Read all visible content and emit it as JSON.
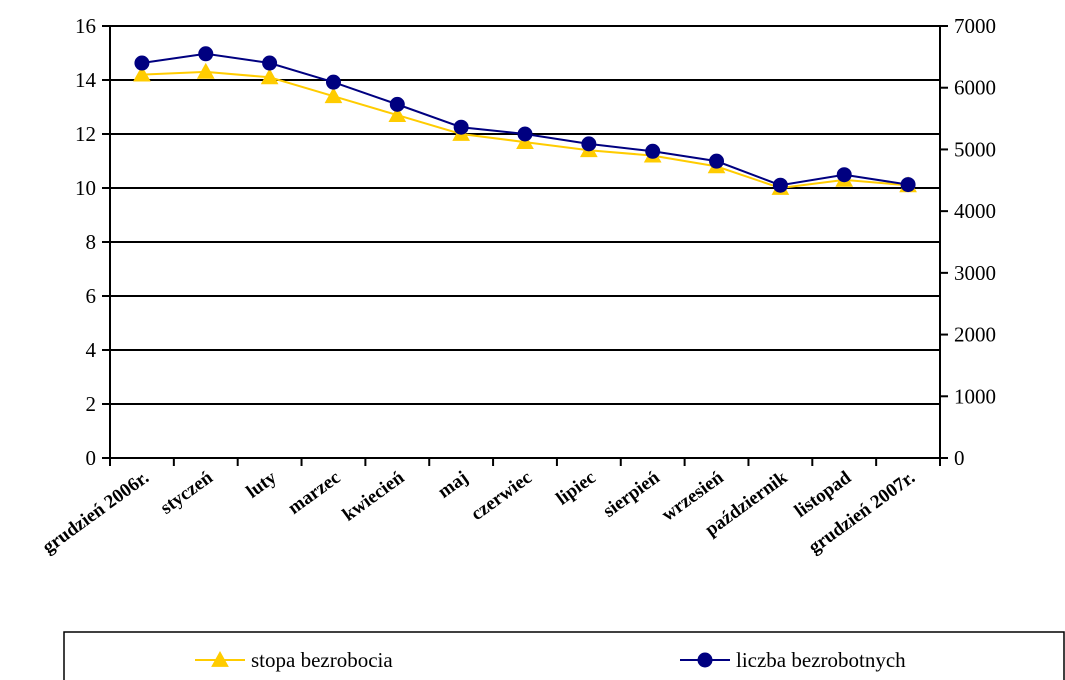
{
  "chart_data": {
    "type": "line",
    "categories": [
      "grudzień 2006r.",
      "styczeń",
      "luty",
      "marzec",
      "kwiecień",
      "maj",
      "czerwiec",
      "lipiec",
      "sierpień",
      "wrzesień",
      "październik",
      "listopad",
      "grudzień 2007r."
    ],
    "series": [
      {
        "name": "stopa bezrobocia",
        "axis": "left",
        "color": "#FFCC00",
        "marker": "triangle",
        "values": [
          14.2,
          14.3,
          14.1,
          13.4,
          12.7,
          12.0,
          11.7,
          11.4,
          11.2,
          10.8,
          10.0,
          10.3,
          10.1
        ]
      },
      {
        "name": "liczba bezrobotnych",
        "axis": "right",
        "color": "#000080",
        "marker": "circle",
        "values": [
          6400,
          6550,
          6400,
          6090,
          5730,
          5360,
          5250,
          5090,
          4970,
          4810,
          4420,
          4590,
          4430
        ]
      }
    ],
    "y_left": {
      "min": 0,
      "max": 16,
      "step": 2,
      "ticks": [
        "0",
        "2",
        "4",
        "6",
        "8",
        "10",
        "12",
        "14",
        "16"
      ]
    },
    "y_right": {
      "min": 0,
      "max": 7000,
      "step": 1000,
      "ticks": [
        "0",
        "1000",
        "2000",
        "3000",
        "4000",
        "5000",
        "6000",
        "7000"
      ]
    },
    "grid": true,
    "legend": "bottom",
    "title": "",
    "xlabel": "",
    "ylabel": ""
  }
}
